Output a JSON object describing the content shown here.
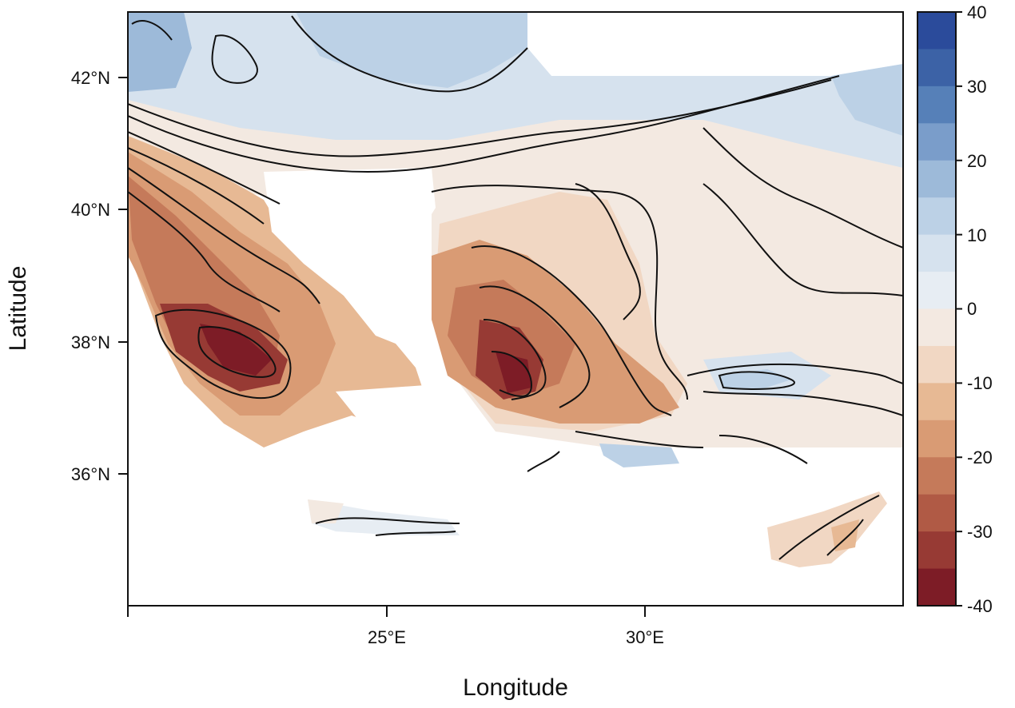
{
  "map": {
    "xlabel": "Longitude",
    "ylabel": "Latitude",
    "x_ticks": [
      "25°E",
      "30°E"
    ],
    "y_ticks": [
      "42°N",
      "40°N",
      "38°N",
      "36°N"
    ],
    "lon_range": [
      20,
      35
    ],
    "lat_range": [
      34.1,
      43
    ]
  },
  "colorbar": {
    "labels": [
      "40",
      "30",
      "20",
      "10",
      "0",
      "-10",
      "-20",
      "-30",
      "-40"
    ],
    "range": [
      -40,
      40
    ],
    "step": 5,
    "colors": [
      "#2b4b9b",
      "#3c62a6",
      "#5680b8",
      "#7a9dca",
      "#9dbad9",
      "#bcd1e6",
      "#d6e2ee",
      "#e7edf3",
      "#f3e9e1",
      "#f1d7c3",
      "#e7b994",
      "#d99b74",
      "#c57a5a",
      "#b05a45",
      "#973a34",
      "#7d1c26"
    ]
  }
}
